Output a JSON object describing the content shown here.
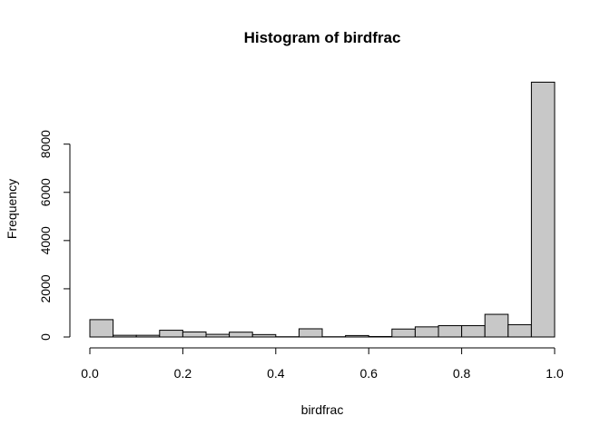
{
  "chart_data": {
    "type": "bar",
    "title": "Histogram of birdfrac",
    "xlabel": "birdfrac",
    "ylabel": "Frequency",
    "xlim": [
      0,
      1
    ],
    "ylim": [
      0,
      10000
    ],
    "bin_edges": [
      0.0,
      0.05,
      0.1,
      0.15,
      0.2,
      0.25,
      0.3,
      0.35,
      0.4,
      0.45,
      0.5,
      0.55,
      0.6,
      0.65,
      0.7,
      0.75,
      0.8,
      0.85,
      0.9,
      0.95,
      1.0
    ],
    "values": [
      720,
      70,
      70,
      280,
      210,
      110,
      200,
      100,
      10,
      340,
      10,
      60,
      20,
      330,
      420,
      470,
      470,
      940,
      510,
      10570
    ],
    "x_ticks": [
      0.0,
      0.2,
      0.4,
      0.6,
      0.8,
      1.0
    ],
    "x_tick_labels": [
      "0.0",
      "0.2",
      "0.4",
      "0.6",
      "0.8",
      "1.0"
    ],
    "y_ticks": [
      0,
      2000,
      4000,
      6000,
      8000
    ],
    "y_tick_labels": [
      "0",
      "2000",
      "4000",
      "6000",
      "8000"
    ],
    "colors": {
      "bar_fill": "#c8c8c8",
      "bar_stroke": "#000000"
    },
    "grid": false
  }
}
